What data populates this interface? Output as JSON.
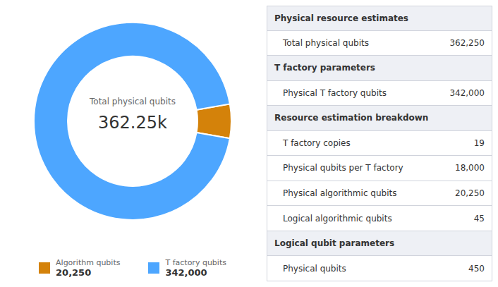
{
  "chart_data": {
    "type": "donut",
    "categories": [
      "Algorithm qubits",
      "T factory qubits"
    ],
    "values": [
      20250,
      342000
    ],
    "value_labels": [
      "20,250",
      "342,000"
    ],
    "colors": [
      "#d4820a",
      "#4da6ff"
    ],
    "annotations": [
      "Total physical qubits",
      "362.25k"
    ]
  },
  "table": {
    "rows": [
      {
        "section": true,
        "label": "Physical resource estimates"
      },
      {
        "label": "Total physical qubits",
        "value": 362250,
        "value_label": "362,250"
      },
      {
        "section": true,
        "label": "T factory parameters"
      },
      {
        "label": "Physical T factory qubits",
        "value": 342000,
        "value_label": "342,000"
      },
      {
        "section": true,
        "label": "Resource estimation breakdown"
      },
      {
        "label": "T factory copies",
        "value": 19
      },
      {
        "label": "Physical qubits per T factory",
        "value": 18000,
        "value_label": "18,000"
      },
      {
        "label": "Physical algorithmic qubits",
        "value": 20250,
        "value_label": "20,250"
      },
      {
        "label": "Logical algorithmic qubits",
        "value": 45
      },
      {
        "section": true,
        "label": "Logical qubit parameters"
      },
      {
        "label": "Physical qubits",
        "value": 450
      }
    ]
  }
}
